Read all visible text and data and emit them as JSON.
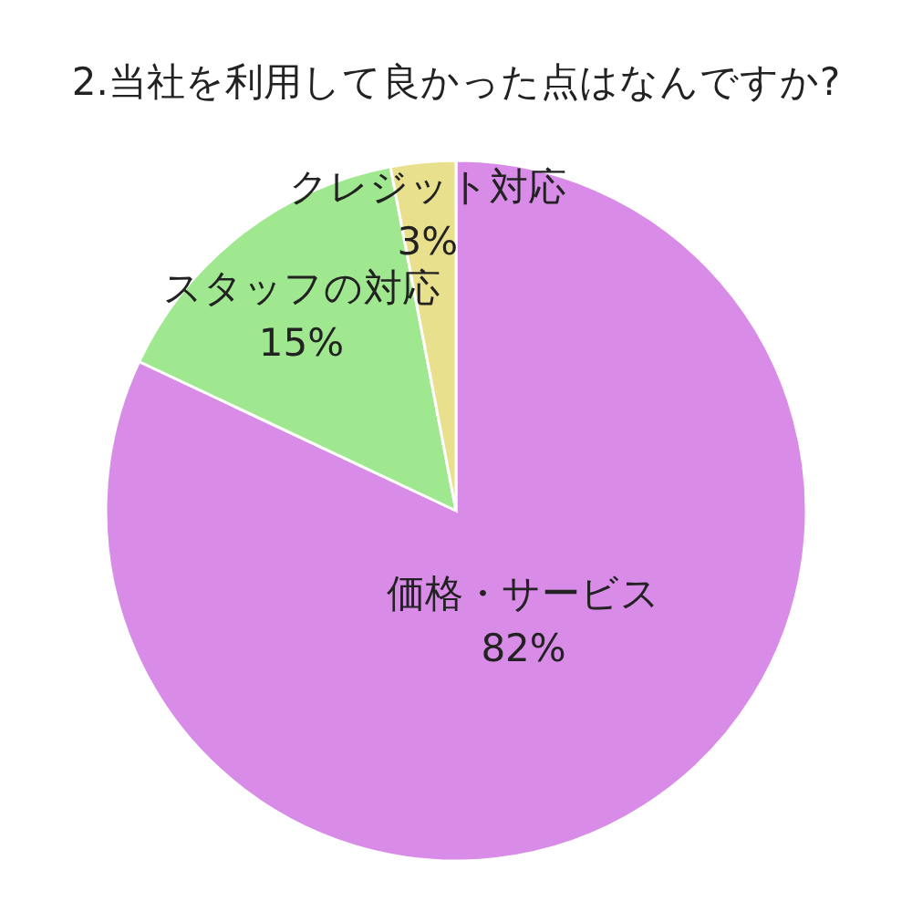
{
  "chart_data": {
    "type": "pie",
    "title": "2.当社を利用して良かった点はなんですか?",
    "categories": [
      "価格・サービス",
      "スタッフの対応",
      "クレジット対応"
    ],
    "values": [
      82,
      15,
      3
    ],
    "colors": [
      "#d98be8",
      "#a0e890",
      "#e8e08c"
    ],
    "value_labels": [
      "82%",
      "15%",
      "3%"
    ]
  }
}
